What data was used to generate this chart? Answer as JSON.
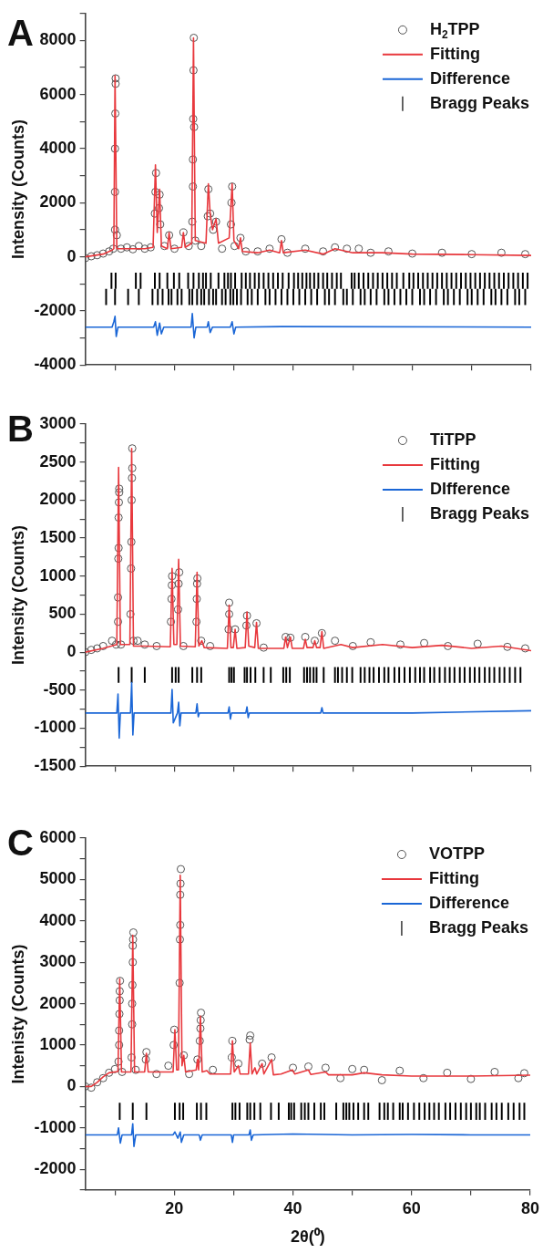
{
  "chart_data": [
    {
      "type": "line",
      "title": "A",
      "ylabel": "Intensity (Counts)",
      "legend": "top right",
      "tick_labels": "y",
      "xlim": [
        5,
        80
      ],
      "xticks": [
        {
          "value": 10,
          "label": null
        },
        20,
        {
          "value": 30,
          "label": null
        },
        40,
        {
          "value": 50,
          "label": null
        },
        60,
        {
          "value": 70,
          "label": null
        },
        80
      ],
      "ylim": [
        -4000,
        9000
      ],
      "yticks": [
        -4000,
        {
          "value": -3000,
          "label": null
        },
        -2000,
        {
          "value": -1000,
          "label": null
        },
        0,
        {
          "value": 1000,
          "label": null
        },
        2000,
        {
          "value": 3000,
          "label": null
        },
        4000,
        {
          "value": 5000,
          "label": null
        },
        6000,
        {
          "value": 7000,
          "label": null
        },
        8000,
        {
          "value": 9000,
          "label": null
        }
      ],
      "series": [
        {
          "name": "H$_{2}$TPP",
          "type": "scatter",
          "marker": "circle",
          "color": "#555555",
          "x": [
            5,
            6,
            7,
            8,
            9,
            9.7,
            10,
            10,
            10,
            10.05,
            10.1,
            10.1,
            10.3,
            11,
            12,
            13,
            14,
            15,
            16,
            16.7,
            16.8,
            16.9,
            17.4,
            17.5,
            17.6,
            18.3,
            19.1,
            20,
            21.5,
            22.4,
            23,
            23.1,
            23.1,
            23.15,
            23.2,
            23.25,
            23.3,
            23.5,
            24.5,
            25.6,
            25.7,
            26,
            26.5,
            27,
            28,
            29.5,
            29.6,
            29.7,
            30.1,
            31.1,
            32,
            34,
            36,
            38,
            39,
            42,
            45,
            47,
            49,
            51,
            53,
            56,
            60,
            65,
            70,
            75,
            79
          ],
          "values": [
            -50,
            20,
            60,
            120,
            200,
            300,
            1000,
            2400,
            4000,
            5300,
            6400,
            6600,
            800,
            300,
            350,
            280,
            400,
            300,
            350,
            1600,
            2400,
            3100,
            1800,
            2300,
            1200,
            400,
            800,
            300,
            900,
            400,
            1300,
            2600,
            3600,
            5100,
            6900,
            8100,
            4800,
            600,
            400,
            1500,
            2500,
            1600,
            1000,
            1300,
            300,
            1200,
            2000,
            2600,
            400,
            700,
            200,
            200,
            300,
            650,
            150,
            300,
            200,
            350,
            300,
            300,
            150,
            200,
            120,
            150,
            100,
            150,
            100
          ]
        },
        {
          "name": "Fitting",
          "marker": "none",
          "color": "#e8383d",
          "x": [
            5,
            8,
            9.5,
            9.8,
            10,
            10.3,
            13,
            15,
            16.4,
            16.8,
            17.1,
            17.5,
            17.8,
            18.8,
            19.1,
            19.4,
            21.2,
            21.5,
            21.8,
            22.9,
            23.2,
            23.5,
            25.3,
            25.7,
            26,
            26.4,
            27,
            27.4,
            29.2,
            29.7,
            30,
            30.8,
            31.1,
            31.4,
            34,
            36,
            37.7,
            38,
            38.3,
            42,
            45,
            47,
            50,
            55,
            60,
            70,
            80
          ],
          "values": [
            0,
            100,
            250,
            300,
            6700,
            300,
            300,
            300,
            350,
            3400,
            900,
            2500,
            400,
            300,
            900,
            300,
            350,
            900,
            350,
            500,
            8100,
            600,
            500,
            2700,
            1600,
            1000,
            1400,
            500,
            700,
            2700,
            600,
            300,
            700,
            200,
            150,
            250,
            150,
            600,
            150,
            250,
            100,
            300,
            150,
            150,
            100,
            80,
            50
          ]
        },
        {
          "name": "Difference",
          "marker": "none",
          "color": "#1a66d6",
          "x": [
            5,
            9.5,
            9.8,
            10,
            10.2,
            10.5,
            16.5,
            16.8,
            17.1,
            17.5,
            17.8,
            18.2,
            22.8,
            23,
            23.3,
            23.6,
            25.5,
            25.7,
            26,
            26.4,
            29.4,
            29.7,
            30,
            30.3,
            38,
            80
          ],
          "values": [
            -2600,
            -2600,
            -2400,
            -2200,
            -2950,
            -2600,
            -2600,
            -2400,
            -2900,
            -2450,
            -2850,
            -2600,
            -2600,
            -2100,
            -3000,
            -2600,
            -2600,
            -2400,
            -2800,
            -2600,
            -2600,
            -2400,
            -2850,
            -2600,
            -2580,
            -2600
          ]
        },
        {
          "name": "Bragg Peaks",
          "type": "bar",
          "color": "#000000",
          "x": [
            8.5,
            9.4,
            10,
            10.1,
            12.2,
            13.5,
            14,
            14.3,
            16.3,
            16.7,
            17.2,
            17.5,
            18,
            18.8,
            19,
            19.5,
            19.9,
            20.5,
            20.8,
            21.2,
            22.3,
            22.5,
            23,
            23.2,
            23.8,
            24.1,
            24.5,
            24.8,
            25,
            25.3,
            25.8,
            26.1,
            26.5,
            27,
            27.4,
            28,
            28.4,
            28.6,
            29,
            29.4,
            29.5,
            29.9,
            30.2,
            30.5,
            31.2,
            31.3,
            32,
            32.3,
            32.7,
            33,
            33.5,
            34,
            34.2,
            35,
            35.3,
            35.8,
            36,
            36.6,
            37,
            37.4,
            38,
            38.2,
            39,
            39.2,
            40,
            40.1,
            40.8,
            41,
            41.5,
            42,
            42.2,
            42.8,
            43,
            43.5,
            44,
            44.2,
            45,
            45.3,
            45.7,
            46,
            46.5,
            47,
            47.3,
            48,
            48.4,
            49,
            49.8,
            50,
            50.3,
            51,
            51.3,
            51.8,
            52,
            52.6,
            53,
            53.4,
            54,
            54.2,
            55,
            55.3,
            55.8,
            56,
            56.6,
            57,
            57.4,
            58,
            58.5,
            59,
            59.5,
            60,
            60.2,
            61,
            61.3,
            61.8,
            62,
            62.6,
            63,
            63.4,
            64,
            64.2,
            65,
            65.3,
            65.8,
            66,
            66.6,
            67,
            67.4,
            68,
            68.2,
            69,
            69.3,
            69.8,
            70,
            70.6,
            71,
            71.4,
            72,
            72.2,
            73,
            73.3,
            73.8,
            74,
            74.6,
            75,
            75.4,
            76,
            76.2,
            77,
            77.3,
            77.8,
            78,
            78.6,
            79,
            79.4
          ],
          "base": [
            -1770,
            -1170,
            -1770,
            -1170,
            -1770,
            -1170,
            -1770,
            -1170,
            -1770,
            -1170,
            -1770,
            -1170,
            -1770,
            -1170,
            -1770,
            -1770,
            -1170,
            -1770,
            -1170,
            -1770,
            -1170,
            -1770,
            -1770,
            -1170,
            -1770,
            -1170,
            -1770,
            -1170,
            -1770,
            -1170,
            -1770,
            -1170,
            -1770,
            -1770,
            -1170,
            -1770,
            -1170,
            -1770,
            -1170,
            -1770,
            -1170,
            -1770,
            -1170,
            -1770,
            -1770,
            -1170,
            -1170,
            -1770,
            -1170,
            -1770,
            -1170,
            -1770,
            -1170,
            -1170,
            -1770,
            -1170,
            -1770,
            -1170,
            -1770,
            -1170,
            -1770,
            -1170,
            -1770,
            -1170,
            -1770,
            -1170,
            -1170,
            -1770,
            -1170,
            -1770,
            -1170,
            -1170,
            -1770,
            -1170,
            -1770,
            -1170,
            -1170,
            -1770,
            -1170,
            -1770,
            -1170,
            -1770,
            -1170,
            -1170,
            -1770,
            -1770,
            -1170,
            -1770,
            -1170,
            -1170,
            -1770,
            -1170,
            -1770,
            -1170,
            -1770,
            -1170,
            -1770,
            -1170,
            -1170,
            -1770,
            -1170,
            -1770,
            -1170,
            -1770,
            -1170,
            -1770,
            -1170,
            -1770,
            -1170,
            -1770,
            -1170,
            -1170,
            -1770,
            -1170,
            -1770,
            -1170,
            -1770,
            -1170,
            -1770,
            -1170,
            -1170,
            -1770,
            -1170,
            -1770,
            -1170,
            -1770,
            -1170,
            -1770,
            -1170,
            -1170,
            -1770,
            -1170,
            -1770,
            -1170,
            -1770,
            -1170,
            -1770,
            -1170,
            -1170,
            -1770,
            -1170,
            -1770,
            -1170,
            -1770,
            -1170,
            -1770,
            -1170,
            -1170,
            -1770,
            -1170,
            -1770,
            -1170,
            -1770,
            -1170
          ],
          "values": [
            570,
            570,
            570,
            570,
            570,
            570,
            570,
            570,
            570,
            570,
            570,
            570,
            570,
            570,
            570,
            570,
            570,
            570,
            570,
            570,
            570,
            570,
            570,
            570,
            570,
            570,
            570,
            570,
            570,
            570,
            570,
            570,
            570,
            570,
            570,
            570,
            570,
            570,
            570,
            570,
            570,
            570,
            570,
            570,
            570,
            570,
            570,
            570,
            570,
            570,
            570,
            570,
            570,
            570,
            570,
            570,
            570,
            570,
            570,
            570,
            570,
            570,
            570,
            570,
            570,
            570,
            570,
            570,
            570,
            570,
            570,
            570,
            570,
            570,
            570,
            570,
            570,
            570,
            570,
            570,
            570,
            570,
            570,
            570,
            570,
            570,
            570,
            570,
            570,
            570,
            570,
            570,
            570,
            570,
            570,
            570,
            570,
            570,
            570,
            570,
            570,
            570,
            570,
            570,
            570,
            570,
            570,
            570,
            570,
            570,
            570,
            570,
            570,
            570,
            570,
            570,
            570,
            570,
            570,
            570,
            570,
            570,
            570,
            570,
            570,
            570,
            570,
            570,
            570,
            570,
            570,
            570,
            570,
            570,
            570,
            570,
            570,
            570,
            570,
            570,
            570,
            570,
            570,
            570,
            570,
            570,
            570,
            570,
            570,
            570,
            570,
            570,
            570,
            570
          ]
        }
      ]
    },
    {
      "type": "line",
      "title": "B",
      "ylabel": "Intensity (Counts)",
      "legend": "top right",
      "tick_labels": "y",
      "xlim": [
        5,
        80
      ],
      "xticks": [
        {
          "value": 10,
          "label": null
        },
        20,
        {
          "value": 30,
          "label": null
        },
        40,
        {
          "value": 50,
          "label": null
        },
        60,
        {
          "value": 70,
          "label": null
        },
        80
      ],
      "ylim": [
        -1500,
        3000
      ],
      "yticks": [
        -1500,
        {
          "value": -1250,
          "label": null
        },
        -1000,
        {
          "value": -750,
          "label": null
        },
        -500,
        {
          "value": -250,
          "label": null
        },
        0,
        {
          "value": 250,
          "label": null
        },
        500,
        {
          "value": 750,
          "label": null
        },
        1000,
        {
          "value": 1250,
          "label": null
        },
        1500,
        {
          "value": 1750,
          "label": null
        },
        2000,
        {
          "value": 2250,
          "label": null
        },
        2500,
        {
          "value": 2750,
          "label": null
        },
        3000
      ],
      "series": [
        {
          "name": "TiTPP",
          "type": "scatter",
          "marker": "circle",
          "color": "#555555",
          "x": [
            5,
            6,
            7,
            8,
            9.5,
            10.2,
            10.5,
            10.5,
            10.55,
            10.6,
            10.6,
            10.65,
            10.7,
            10.7,
            11,
            12.6,
            12.7,
            12.75,
            12.8,
            12.85,
            12.9,
            12.9,
            13.1,
            13.8,
            15,
            17,
            19.4,
            19.5,
            19.55,
            19.6,
            20.6,
            20.7,
            20.8,
            21.5,
            23.7,
            23.75,
            23.8,
            23.85,
            24.5,
            26,
            29.1,
            29.2,
            29.2,
            30.2,
            32.1,
            32.2,
            33.8,
            35,
            38.7,
            39.5,
            42,
            43.6,
            44.8,
            47,
            50,
            53,
            58,
            62,
            66,
            71,
            76,
            79
          ],
          "values": [
            0,
            30,
            50,
            80,
            150,
            100,
            400,
            720,
            1230,
            1370,
            1770,
            1970,
            2100,
            2150,
            100,
            500,
            1100,
            1450,
            2000,
            2290,
            2420,
            2680,
            150,
            150,
            100,
            80,
            400,
            700,
            880,
            1000,
            560,
            900,
            1050,
            80,
            400,
            700,
            900,
            970,
            150,
            80,
            300,
            500,
            650,
            300,
            350,
            480,
            380,
            60,
            200,
            190,
            200,
            150,
            250,
            150,
            80,
            130,
            100,
            120,
            80,
            110,
            70,
            50
          ]
        },
        {
          "name": "Fitting",
          "marker": "none",
          "color": "#e8383d",
          "x": [
            5,
            8,
            10.3,
            10.6,
            10.9,
            12.5,
            12.8,
            13.1,
            15,
            19.3,
            19.6,
            19.9,
            20.4,
            20.7,
            21,
            23.5,
            23.8,
            24.1,
            24.6,
            25,
            28.9,
            29.2,
            29.5,
            29.9,
            30.2,
            30.5,
            31.9,
            32.2,
            32.5,
            33.5,
            33.8,
            34.1,
            38.4,
            38.7,
            39,
            39.5,
            39.8,
            41.7,
            42,
            42.3,
            43.3,
            43.6,
            43.9,
            44.5,
            44.8,
            45.1,
            48,
            50,
            55,
            60,
            65,
            70,
            75,
            80
          ],
          "values": [
            0,
            50,
            100,
            2430,
            100,
            100,
            2680,
            80,
            80,
            70,
            1100,
            100,
            100,
            1220,
            80,
            70,
            1050,
            80,
            150,
            60,
            50,
            620,
            60,
            60,
            300,
            50,
            60,
            530,
            80,
            60,
            390,
            50,
            50,
            200,
            60,
            200,
            50,
            50,
            170,
            60,
            60,
            150,
            60,
            60,
            270,
            50,
            100,
            60,
            100,
            60,
            90,
            50,
            80,
            20
          ]
        },
        {
          "name": "DIfference",
          "marker": "none",
          "color": "#1a66d6",
          "x": [
            5,
            10.3,
            10.5,
            10.7,
            10.9,
            12.6,
            12.8,
            13,
            13.2,
            19.4,
            19.6,
            19.8,
            20.5,
            20.7,
            20.9,
            21.1,
            23.6,
            23.8,
            24,
            24.2,
            29,
            29.2,
            29.4,
            29.6,
            32,
            32.2,
            32.4,
            32.6,
            44.6,
            44.8,
            45,
            60,
            80
          ],
          "values": [
            -800,
            -800,
            -550,
            -1130,
            -800,
            -800,
            -400,
            -1090,
            -800,
            -800,
            -490,
            -930,
            -800,
            -660,
            -970,
            -800,
            -800,
            -680,
            -850,
            -800,
            -800,
            -720,
            -880,
            -800,
            -800,
            -720,
            -860,
            -800,
            -800,
            -730,
            -800,
            -800,
            -770
          ]
        },
        {
          "name": "Bragg Peaks",
          "type": "bar",
          "color": "#000000",
          "x": [
            10.6,
            12.8,
            15,
            19.6,
            20.2,
            20.7,
            23,
            23.8,
            24.5,
            29.2,
            29.6,
            30,
            31.8,
            32.2,
            32.8,
            33.6,
            35,
            36.2,
            38.3,
            38.8,
            39.4,
            41.8,
            42.3,
            42.8,
            43.4,
            43.9,
            45.1,
            47,
            47.5,
            48.2,
            49,
            49.9,
            51.3,
            52,
            52.8,
            53.5,
            54.4,
            55.3,
            56,
            57,
            57.8,
            58.7,
            59.6,
            60.5,
            61.3,
            62,
            63,
            63.7,
            64.6,
            65.5,
            66.3,
            67.1,
            68,
            68.8,
            69.7,
            70.5,
            71.3,
            72.2,
            73,
            73.8,
            74.7,
            75.5,
            76.4,
            77.3,
            78.2
          ],
          "base": [
            -400,
            -400,
            -400,
            -400,
            -400,
            -400,
            -400,
            -400,
            -400,
            -400,
            -400,
            -400,
            -400,
            -400,
            -400,
            -400,
            -400,
            -400,
            -400,
            -400,
            -400,
            -400,
            -400,
            -400,
            -400,
            -400,
            -400,
            -400,
            -400,
            -400,
            -400,
            -400,
            -400,
            -400,
            -400,
            -400,
            -400,
            -400,
            -400,
            -400,
            -400,
            -400,
            -400,
            -400,
            -400,
            -400,
            -400,
            -400,
            -400,
            -400,
            -400,
            -400,
            -400,
            -400,
            -400,
            -400,
            -400,
            -400,
            -400,
            -400,
            -400,
            -400,
            -400,
            -400,
            -400
          ],
          "values": [
            200,
            200,
            200,
            200,
            200,
            200,
            200,
            200,
            200,
            200,
            200,
            200,
            200,
            200,
            200,
            200,
            200,
            200,
            200,
            200,
            200,
            200,
            200,
            200,
            200,
            200,
            200,
            200,
            200,
            200,
            200,
            200,
            200,
            200,
            200,
            200,
            200,
            200,
            200,
            200,
            200,
            200,
            200,
            200,
            200,
            200,
            200,
            200,
            200,
            200,
            200,
            200,
            200,
            200,
            200,
            200,
            200,
            200,
            200,
            200,
            200,
            200,
            200,
            200,
            200
          ]
        }
      ]
    },
    {
      "type": "line",
      "title": "C",
      "xlabel": "2θ(⁰)",
      "ylabel": "Intenisty (Counts)",
      "legend": "top right",
      "xlim": [
        5,
        80
      ],
      "xticks": [
        {
          "value": 10,
          "label": null
        },
        20,
        {
          "value": 30,
          "label": null
        },
        40,
        {
          "value": 50,
          "label": null
        },
        60,
        {
          "value": 70,
          "label": null
        },
        80
      ],
      "ylim": [
        -2500,
        6000
      ],
      "yticks": [
        {
          "value": -2500,
          "label": null
        },
        -2000,
        {
          "value": -1500,
          "label": null
        },
        -1000,
        {
          "value": -500,
          "label": null
        },
        0,
        {
          "value": 500,
          "label": null
        },
        1000,
        {
          "value": 1500,
          "label": null
        },
        2000,
        {
          "value": 2500,
          "label": null
        },
        3000,
        {
          "value": 3500,
          "label": null
        },
        4000,
        {
          "value": 4500,
          "label": null
        },
        5000,
        {
          "value": 5500,
          "label": null
        },
        6000
      ],
      "series": [
        {
          "name": "VOTPP",
          "type": "scatter",
          "marker": "circle",
          "color": "#555555",
          "x": [
            5,
            6,
            7,
            8,
            9,
            10,
            10.6,
            10.7,
            10.7,
            10.75,
            10.8,
            10.8,
            10.85,
            11.2,
            12.8,
            12.9,
            12.9,
            12.95,
            13,
            13,
            13.05,
            13.1,
            13.5,
            15.2,
            15.3,
            17,
            19,
            19.9,
            20,
            20.9,
            20.95,
            21,
            21,
            21.05,
            21.1,
            21.6,
            22.5,
            23.9,
            24.3,
            24.4,
            24.45,
            24.5,
            26.5,
            29.7,
            29.8,
            30.8,
            32.7,
            32.8,
            34.8,
            36.4,
            40,
            42.6,
            45.5,
            48,
            50,
            52,
            55,
            58,
            62,
            66,
            70,
            74,
            78,
            79
          ],
          "values": [
            0,
            -30,
            100,
            200,
            330,
            420,
            600,
            1000,
            1350,
            1750,
            2080,
            2300,
            2550,
            350,
            700,
            1500,
            2000,
            2450,
            3000,
            3400,
            3550,
            3720,
            400,
            650,
            830,
            300,
            500,
            1000,
            1370,
            2500,
            3550,
            3900,
            4630,
            4900,
            5250,
            750,
            300,
            650,
            1100,
            1400,
            1600,
            1780,
            400,
            700,
            1100,
            550,
            1130,
            1230,
            550,
            700,
            450,
            480,
            450,
            200,
            420,
            400,
            150,
            380,
            200,
            330,
            180,
            350,
            200,
            320
          ]
        },
        {
          "name": "Fitting",
          "marker": "none",
          "color": "#e8383d",
          "x": [
            5,
            6,
            7,
            8,
            9,
            10.5,
            10.8,
            11.1,
            12.7,
            13,
            13.3,
            15,
            15.3,
            15.6,
            19.8,
            20.1,
            20.4,
            20.7,
            21,
            21.3,
            21.6,
            21.9,
            23.7,
            23.9,
            24.1,
            24.4,
            24.7,
            25.5,
            26,
            29.5,
            29.8,
            30.1,
            30.8,
            31.1,
            32.5,
            32.8,
            33.1,
            33.6,
            33.9,
            34.8,
            35.1,
            36.4,
            36.7,
            38,
            39.9,
            40.3,
            42.6,
            43,
            45.5,
            46,
            50,
            52,
            55,
            60,
            70,
            80
          ],
          "values": [
            0,
            0,
            100,
            230,
            330,
            360,
            2600,
            350,
            350,
            3650,
            350,
            350,
            800,
            350,
            350,
            1370,
            400,
            400,
            5100,
            500,
            750,
            350,
            400,
            650,
            400,
            1700,
            350,
            380,
            300,
            300,
            1100,
            350,
            500,
            300,
            300,
            1050,
            300,
            450,
            300,
            550,
            300,
            650,
            280,
            300,
            400,
            300,
            400,
            290,
            350,
            280,
            280,
            330,
            280,
            250,
            250,
            270
          ]
        },
        {
          "name": "Difference",
          "marker": "none",
          "color": "#1a66d6",
          "x": [
            5,
            10.4,
            10.6,
            10.9,
            11.2,
            12.8,
            13,
            13.2,
            13.5,
            19.8,
            20.1,
            20.6,
            21,
            21.2,
            21.6,
            24.2,
            24.4,
            24.7,
            29.6,
            29.8,
            30,
            32.6,
            32.8,
            33,
            33.3,
            40,
            50,
            60,
            70,
            80
          ],
          "values": [
            -1170,
            -1170,
            -1000,
            -1370,
            -1170,
            -1170,
            -900,
            -1450,
            -1170,
            -1170,
            -1100,
            -1250,
            -1100,
            -1350,
            -1170,
            -1170,
            -1300,
            -1170,
            -1170,
            -1350,
            -1170,
            -1170,
            -1050,
            -1300,
            -1170,
            -1150,
            -1170,
            -1160,
            -1170,
            -1170
          ]
        },
        {
          "name": "Bragg Peaks",
          "type": "bar",
          "color": "#000000",
          "x": [
            10.8,
            13,
            15.3,
            20.1,
            20.9,
            21.5,
            23.8,
            24.5,
            25.4,
            29.8,
            30.3,
            31,
            32.3,
            32.8,
            33.5,
            34.5,
            36.3,
            37.6,
            39.3,
            39.7,
            40.2,
            41.4,
            42,
            42.6,
            43.6,
            44.7,
            45.3,
            47.3,
            48.5,
            49,
            49.5,
            50.2,
            51,
            52,
            52.7,
            54.6,
            55.4,
            56,
            56.9,
            58,
            58.5,
            59.4,
            60.4,
            61.3,
            62.2,
            63,
            63.8,
            64.6,
            65.7,
            66.5,
            67.4,
            68.3,
            69.2,
            70,
            70.9,
            71.5,
            72.4,
            73.5,
            74.3,
            75.2,
            76.3,
            77.2,
            78.2,
            79
          ],
          "base": [
            -800,
            -800,
            -800,
            -800,
            -800,
            -800,
            -800,
            -800,
            -800,
            -800,
            -800,
            -800,
            -800,
            -800,
            -800,
            -800,
            -800,
            -800,
            -800,
            -800,
            -800,
            -800,
            -800,
            -800,
            -800,
            -800,
            -800,
            -800,
            -800,
            -800,
            -800,
            -800,
            -800,
            -800,
            -800,
            -800,
            -800,
            -800,
            -800,
            -800,
            -800,
            -800,
            -800,
            -800,
            -800,
            -800,
            -800,
            -800,
            -800,
            -800,
            -800,
            -800,
            -800,
            -800,
            -800,
            -800,
            -800,
            -800,
            -800,
            -800,
            -800,
            -800,
            -800,
            -800
          ],
          "values": [
            400,
            400,
            400,
            400,
            400,
            400,
            400,
            400,
            400,
            400,
            400,
            400,
            400,
            400,
            400,
            400,
            400,
            400,
            400,
            400,
            400,
            400,
            400,
            400,
            400,
            400,
            400,
            400,
            400,
            400,
            400,
            400,
            400,
            400,
            400,
            400,
            400,
            400,
            400,
            400,
            400,
            400,
            400,
            400,
            400,
            400,
            400,
            400,
            400,
            400,
            400,
            400,
            400,
            400,
            400,
            400,
            400,
            400,
            400,
            400,
            400,
            400,
            400,
            400
          ]
        }
      ]
    }
  ]
}
